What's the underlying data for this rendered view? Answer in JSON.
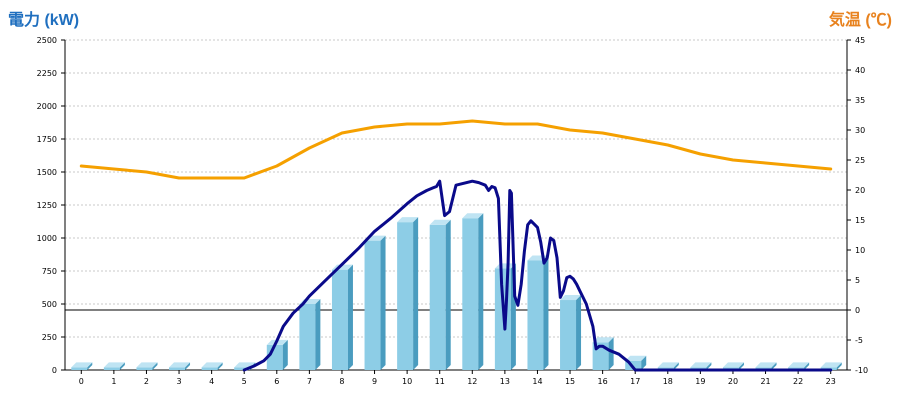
{
  "chart_data": {
    "type": "bar",
    "title": "",
    "left_axis": {
      "label": "電力 (kW)",
      "min": 0,
      "max": 2500,
      "ticks": [
        0,
        250,
        500,
        750,
        1000,
        1250,
        1500,
        1750,
        2000,
        2250,
        2500
      ]
    },
    "right_axis": {
      "label": "気温 (℃)",
      "min": -10,
      "max": 45,
      "ticks": [
        -10,
        -5,
        0,
        5,
        10,
        15,
        20,
        25,
        30,
        35,
        40,
        45
      ]
    },
    "categories": [
      "0",
      "1",
      "2",
      "3",
      "4",
      "5",
      "6",
      "7",
      "8",
      "9",
      "10",
      "11",
      "12",
      "13",
      "14",
      "15",
      "16",
      "17",
      "18",
      "19",
      "20",
      "21",
      "22",
      "23"
    ],
    "grid": true,
    "series": [
      {
        "kind": "bar",
        "axis": "left",
        "values": [
          20,
          20,
          20,
          20,
          20,
          20,
          190,
          500,
          760,
          980,
          1120,
          1100,
          1150,
          770,
          830,
          530,
          210,
          70,
          20,
          20,
          20,
          20,
          20,
          20
        ]
      },
      {
        "kind": "line",
        "axis": "left",
        "x": [
          5,
          5.3,
          5.6,
          5.8,
          6,
          6.2,
          6.5,
          6.8,
          7,
          7.5,
          8,
          8.5,
          9,
          9.5,
          10,
          10.3,
          10.6,
          10.8,
          10.9,
          11,
          11.15,
          11.3,
          11.5,
          12,
          12.2,
          12.4,
          12.5,
          12.6,
          12.7,
          12.8,
          12.9,
          13,
          13.05,
          13.1,
          13.15,
          13.2,
          13.3,
          13.4,
          13.5,
          13.6,
          13.7,
          13.8,
          14,
          14.1,
          14.2,
          14.3,
          14.4,
          14.5,
          14.6,
          14.7,
          14.8,
          14.9,
          15,
          15.1,
          15.2,
          15.3,
          15.5,
          15.7,
          15.8,
          15.9,
          16,
          16.2,
          16.5,
          16.8,
          17,
          17.2,
          18,
          19,
          20,
          21,
          22,
          23
        ],
        "y": [
          0,
          30,
          70,
          120,
          220,
          330,
          430,
          500,
          560,
          680,
          800,
          920,
          1050,
          1150,
          1260,
          1320,
          1360,
          1380,
          1390,
          1430,
          1170,
          1200,
          1400,
          1430,
          1420,
          1400,
          1360,
          1390,
          1380,
          1300,
          650,
          310,
          530,
          810,
          1360,
          1340,
          560,
          490,
          650,
          900,
          1100,
          1130,
          1080,
          970,
          810,
          850,
          1000,
          980,
          850,
          550,
          600,
          700,
          710,
          690,
          650,
          600,
          500,
          330,
          160,
          180,
          180,
          150,
          120,
          60,
          0,
          0,
          0,
          0,
          0,
          0,
          0,
          0
        ]
      },
      {
        "kind": "line",
        "axis": "right",
        "x": [
          0,
          1,
          2,
          3,
          4,
          5,
          6,
          7,
          8,
          9,
          10,
          11,
          12,
          13,
          14,
          15,
          16,
          17,
          18,
          19,
          20,
          21,
          22,
          23
        ],
        "y": [
          24,
          23.5,
          23,
          22,
          22,
          22,
          24,
          27,
          29.5,
          30.5,
          31,
          31,
          31.5,
          31,
          31,
          30,
          29.5,
          28.5,
          27.5,
          26,
          25,
          24.5,
          24,
          23.5
        ]
      }
    ],
    "colors": {
      "bar": "#8dcde6",
      "bar_side": "#4a9cbf",
      "bar_top": "#bfe4f3",
      "power_line": "#0a0a8a",
      "temp_line": "#f5a000",
      "grid": "#c8c8c8",
      "zero_line": "#000000"
    }
  }
}
